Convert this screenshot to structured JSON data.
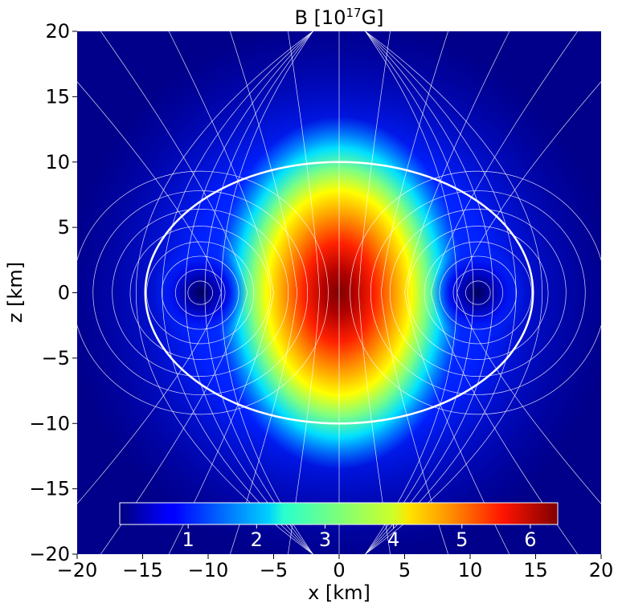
{
  "chart_data": {
    "type": "heatmap",
    "title": {
      "base": "B [10",
      "exponent": "17",
      "suffix": "G]"
    },
    "xlabel": "x [km]",
    "ylabel": "z [km]",
    "xlim": [
      -20,
      20
    ],
    "ylim": [
      -20,
      20
    ],
    "xticks": [
      -20,
      -15,
      -10,
      -5,
      0,
      5,
      10,
      15,
      20
    ],
    "yticks": [
      -20,
      -15,
      -10,
      -5,
      0,
      5,
      10,
      15,
      20
    ],
    "xtick_labels": [
      "−20",
      "−15",
      "−10",
      "−5",
      "0",
      "5",
      "10",
      "15",
      "20"
    ],
    "ytick_labels": [
      "−20",
      "−15",
      "−10",
      "−5",
      "0",
      "5",
      "10",
      "15",
      "20"
    ],
    "colormap": "jet",
    "field": {
      "max_value": 6.4,
      "core_center": [
        0,
        0
      ],
      "null_points": [
        [
          -10.6,
          0
        ],
        [
          10.6,
          0
        ]
      ],
      "star_surface_semi_axes": [
        14.8,
        10.0
      ]
    },
    "colorbar": {
      "orientation": "horizontal",
      "placement": "inside-bottom",
      "range": [
        0,
        6.4
      ],
      "ticks": [
        1,
        2,
        3,
        4,
        5,
        6
      ],
      "tick_labels": [
        "1",
        "2",
        "3",
        "4",
        "5",
        "6"
      ]
    },
    "overlays": [
      "white field lines",
      "white stellar surface outline"
    ]
  }
}
